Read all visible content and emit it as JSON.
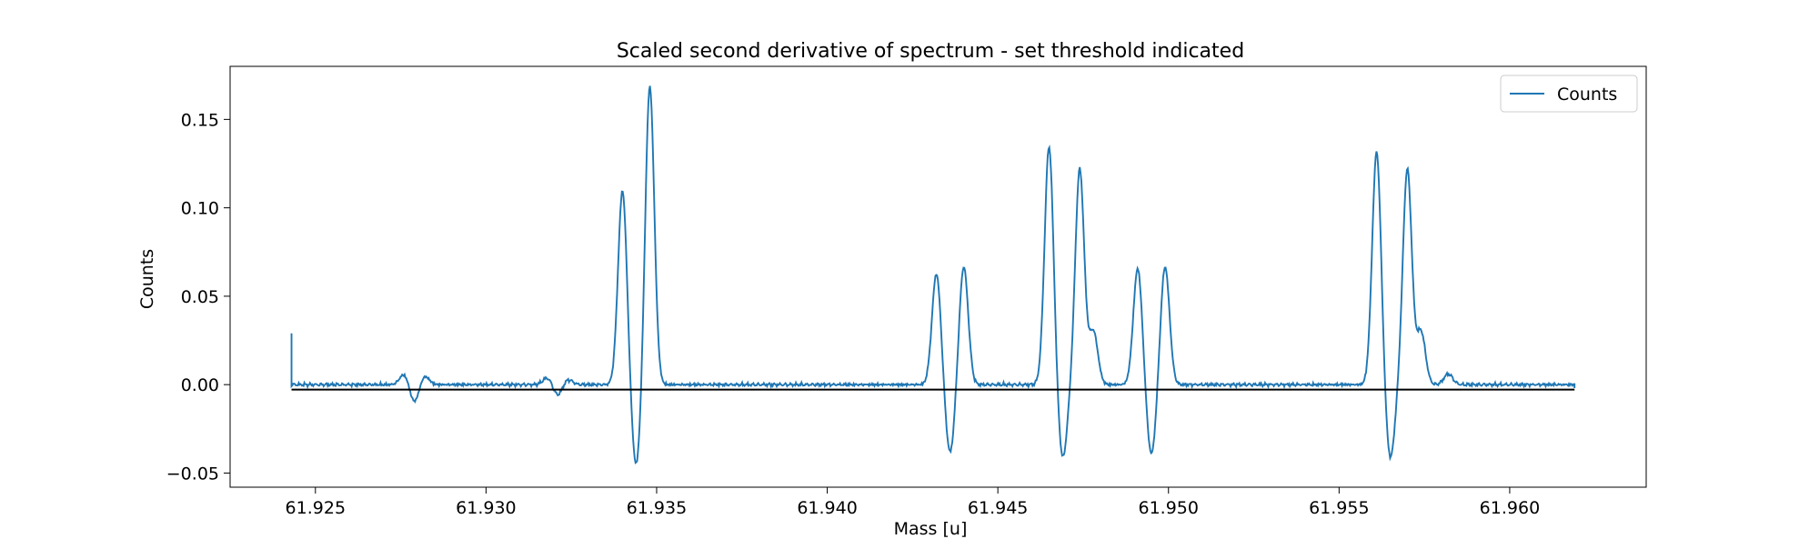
{
  "chart_data": {
    "type": "line",
    "title": "Scaled second derivative of spectrum - set threshold indicated",
    "xlabel": "Mass [u]",
    "ylabel": "Counts",
    "xlim": [
      61.9225,
      61.964
    ],
    "ylim": [
      -0.058,
      0.18
    ],
    "xticks": [
      61.925,
      61.93,
      61.935,
      61.94,
      61.945,
      61.95,
      61.955,
      61.96
    ],
    "xtick_labels": [
      "61.925",
      "61.930",
      "61.935",
      "61.940",
      "61.945",
      "61.950",
      "61.955",
      "61.960"
    ],
    "yticks": [
      -0.05,
      0.0,
      0.05,
      0.1,
      0.15
    ],
    "ytick_labels": [
      "−0.05",
      "0.00",
      "0.05",
      "0.10",
      "0.15"
    ],
    "grid": false,
    "legend": {
      "position": "top-right",
      "entries": [
        "Counts"
      ]
    },
    "colors": {
      "series": "#1f77b4",
      "threshold": "#000000"
    },
    "x_range": [
      61.9243,
      61.9619
    ],
    "baseline_noise": 0.0015,
    "threshold": {
      "y": -0.0028
    },
    "series": [
      {
        "name": "Counts",
        "start_point": {
          "x": 61.9243,
          "y": 0.029
        },
        "peaks": [
          {
            "x": 61.9276,
            "y": 0.006
          },
          {
            "x": 61.9279,
            "y": -0.01
          },
          {
            "x": 61.9282,
            "y": 0.005
          },
          {
            "x": 61.9318,
            "y": 0.004
          },
          {
            "x": 61.9321,
            "y": -0.006
          },
          {
            "x": 61.9324,
            "y": 0.003
          },
          {
            "x": 61.934,
            "y": 0.11
          },
          {
            "x": 61.9344,
            "y": -0.047
          },
          {
            "x": 61.9348,
            "y": 0.169
          },
          {
            "x": 61.9432,
            "y": 0.063
          },
          {
            "x": 61.9436,
            "y": -0.039
          },
          {
            "x": 61.944,
            "y": 0.067
          },
          {
            "x": 61.9465,
            "y": 0.135
          },
          {
            "x": 61.9469,
            "y": -0.042
          },
          {
            "x": 61.9474,
            "y": 0.122
          },
          {
            "x": 61.9478,
            "y": 0.03
          },
          {
            "x": 61.9491,
            "y": 0.066
          },
          {
            "x": 61.9495,
            "y": -0.04
          },
          {
            "x": 61.9499,
            "y": 0.067
          },
          {
            "x": 61.9561,
            "y": 0.132
          },
          {
            "x": 61.9565,
            "y": -0.042
          },
          {
            "x": 61.957,
            "y": 0.122
          },
          {
            "x": 61.9574,
            "y": 0.03
          },
          {
            "x": 61.9582,
            "y": 0.006
          }
        ],
        "end_point": {
          "x": 61.9619,
          "y": -0.002
        }
      }
    ]
  }
}
